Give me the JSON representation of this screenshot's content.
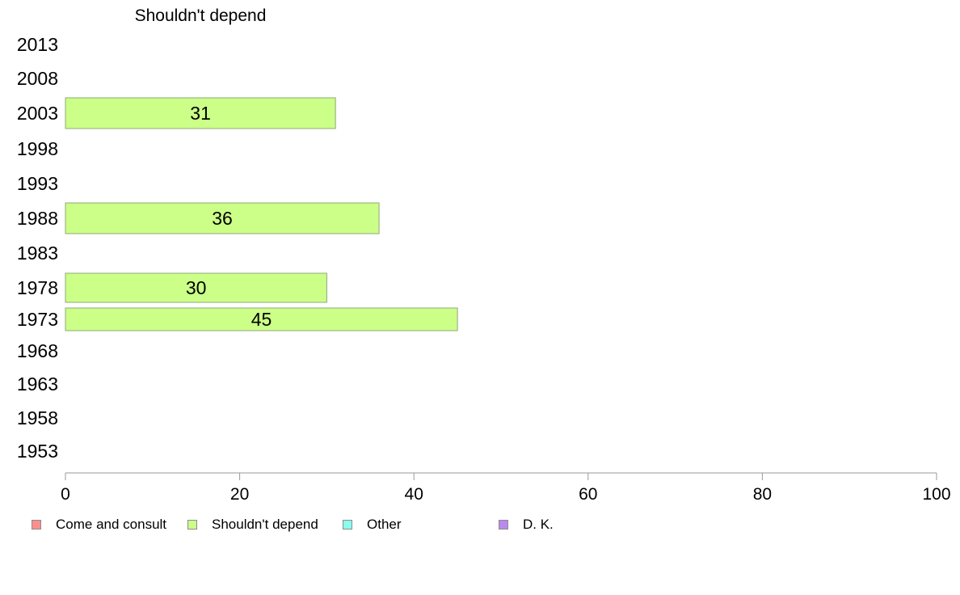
{
  "chart_data": {
    "type": "bar",
    "orientation": "horizontal",
    "title": "Shouldn't depend",
    "categories": [
      "2013",
      "2008",
      "2003",
      "1998",
      "1993",
      "1988",
      "1983",
      "1978",
      "1973",
      "1968",
      "1963",
      "1958",
      "1953"
    ],
    "series": [
      {
        "name": "Shouldn't depend",
        "color": "#ccff88",
        "values": [
          null,
          null,
          31,
          null,
          null,
          36,
          null,
          30,
          45,
          null,
          null,
          null,
          null
        ],
        "data_labels": [
          "",
          "",
          "31",
          "",
          "",
          "36",
          "",
          "30",
          "45",
          "",
          "",
          "",
          ""
        ]
      }
    ],
    "xlim": [
      0,
      100
    ],
    "x_ticks": [
      "0",
      "20",
      "40",
      "60",
      "80",
      "100"
    ],
    "grid": false,
    "legend_position": "bottom",
    "legend": [
      {
        "label": "Come and consult",
        "color": "#ff8f8f"
      },
      {
        "label": "Shouldn't depend",
        "color": "#ccff88"
      },
      {
        "label": "Other",
        "color": "#88ffee"
      },
      {
        "label": "D. K.",
        "color": "#bb88ee"
      }
    ]
  }
}
